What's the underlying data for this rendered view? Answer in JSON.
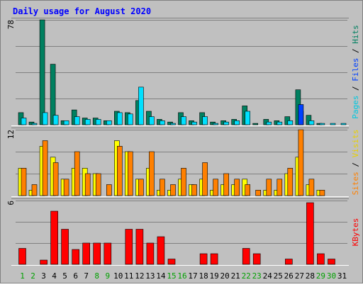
{
  "chart_data": {
    "type": "bar",
    "title": "Daily usage for August 2020",
    "categories": [
      "1",
      "2",
      "3",
      "4",
      "5",
      "6",
      "7",
      "8",
      "9",
      "10",
      "11",
      "12",
      "13",
      "14",
      "15",
      "16",
      "17",
      "18",
      "19",
      "20",
      "21",
      "22",
      "23",
      "24",
      "25",
      "26",
      "27",
      "28",
      "29",
      "30",
      "31"
    ],
    "weekend_days": [
      "1",
      "2",
      "8",
      "9",
      "15",
      "16",
      "22",
      "23",
      "29",
      "30"
    ],
    "grid": true,
    "panels": [
      {
        "id": "hits",
        "ymax_label": "78",
        "ylim": [
          0,
          78
        ],
        "series": [
          {
            "name": "Hits",
            "color": "#008060",
            "values": [
              9,
              2,
              78,
              45,
              3,
              11,
              5,
              5,
              3,
              10,
              9,
              18,
              10,
              4,
              2,
              9,
              3,
              9,
              2,
              3,
              4,
              14,
              1,
              4,
              3,
              6,
              26,
              7,
              1,
              0,
              0
            ]
          },
          {
            "name": "Files",
            "color": "#00e0ff",
            "values": [
              5,
              1,
              9,
              7,
              3,
              6,
              4,
              4,
              3,
              9,
              8,
              28,
              6,
              3,
              1,
              6,
              2,
              6,
              1,
              2,
              3,
              10,
              0,
              2,
              2,
              3,
              10,
              3,
              1,
              1,
              1
            ]
          },
          {
            "name": "Pages",
            "color": "#0040ff",
            "values": [
              0,
              0,
              0,
              0,
              0,
              0,
              0,
              0,
              0,
              0,
              0,
              0,
              0,
              0,
              0,
              0,
              0,
              0,
              0,
              0,
              0,
              0,
              0,
              0,
              0,
              0,
              15,
              0,
              0,
              0,
              0
            ]
          }
        ],
        "label_parts": [
          {
            "text": "Pages",
            "color": "#00c8e0"
          },
          {
            "text": " / ",
            "color": "#000000"
          },
          {
            "text": "Files",
            "color": "#0040ff"
          },
          {
            "text": " / ",
            "color": "#000000"
          },
          {
            "text": "Hits",
            "color": "#008060"
          }
        ]
      },
      {
        "id": "visits",
        "ymax_label": "12",
        "ylim": [
          0,
          12
        ],
        "series": [
          {
            "name": "Visits",
            "color": "#ffff00",
            "values": [
              5,
              1,
              9,
              7,
              3,
              5,
              5,
              4,
              0,
              10,
              8,
              3,
              5,
              1,
              1,
              3,
              2,
              3,
              1,
              2,
              2,
              3,
              0,
              1,
              1,
              4,
              7,
              2,
              1,
              0,
              0
            ]
          },
          {
            "name": "Sites",
            "color": "#ff8000",
            "values": [
              5,
              2,
              10,
              6,
              3,
              8,
              4,
              4,
              2,
              9,
              8,
              3,
              8,
              3,
              2,
              5,
              2,
              6,
              3,
              4,
              3,
              2,
              1,
              3,
              3,
              5,
              12,
              3,
              1,
              0,
              0
            ]
          }
        ],
        "label_parts": [
          {
            "text": "Sites",
            "color": "#ff8000"
          },
          {
            "text": " / ",
            "color": "#000000"
          },
          {
            "text": "Visits",
            "color": "#e8d000"
          }
        ]
      },
      {
        "id": "kbytes",
        "ymax_label": "6",
        "ylim": [
          0,
          6
        ],
        "series": [
          {
            "name": "KBytes",
            "color": "#ff0000",
            "values": [
              1.5,
              0,
              0.4,
              5,
              3.3,
              1.4,
              2,
              2,
              2,
              0,
              3.3,
              3.3,
              2,
              2.6,
              0.5,
              0,
              0,
              1,
              1,
              0,
              0,
              1.5,
              1,
              0,
              0,
              0.5,
              0,
              5.8,
              1,
              0.5,
              0
            ]
          }
        ],
        "label_parts": [
          {
            "text": "KBytes",
            "color": "#ff0000"
          }
        ]
      }
    ],
    "colors": {
      "background": "#ffffff",
      "frame": "#c0c0c0",
      "plot_bg": "#c0c0c0",
      "gridline": "#808080",
      "title": "#0000ff",
      "weekday_label": "#000000",
      "weekend_label": "#00a000"
    }
  }
}
